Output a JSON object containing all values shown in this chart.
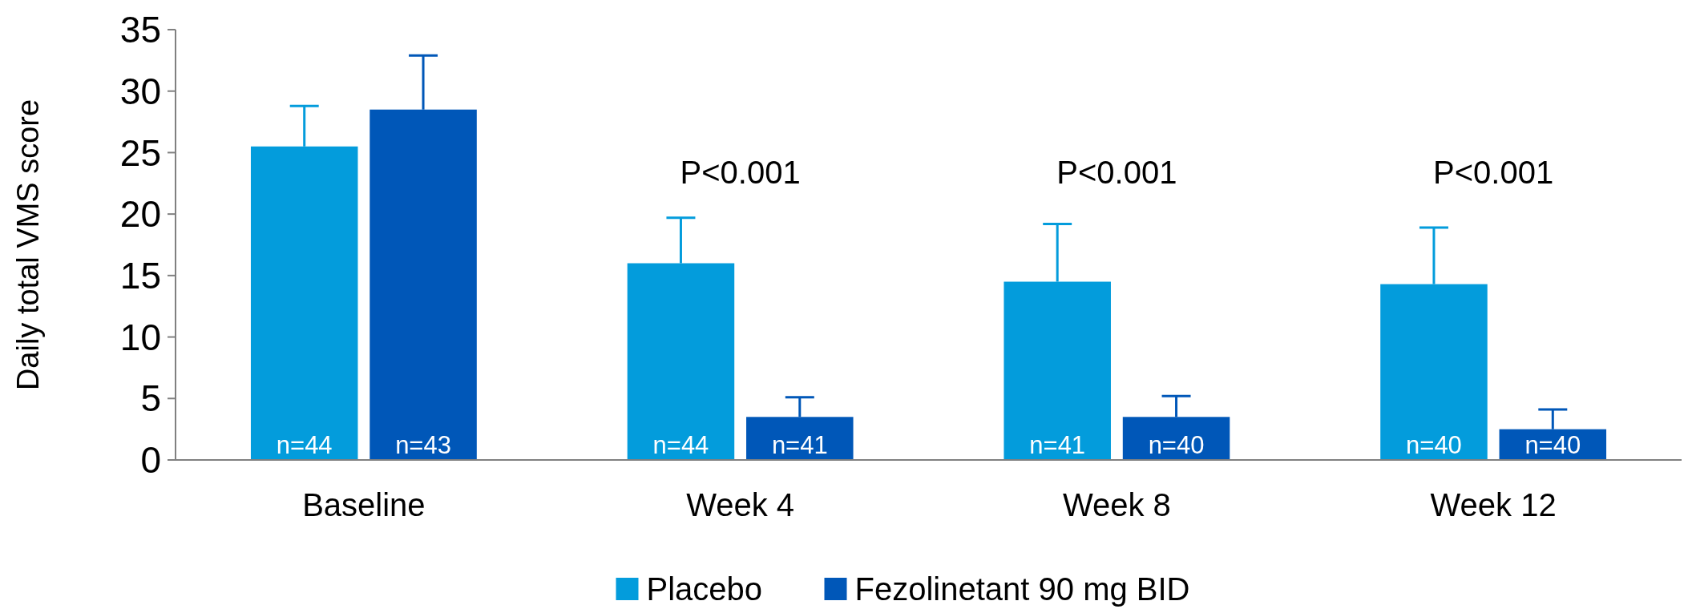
{
  "chart_data": {
    "type": "bar",
    "ylabel": "Daily total VMS score",
    "categories": [
      "Baseline",
      "Week 4",
      "Week 8",
      "Week 12"
    ],
    "series": [
      {
        "name": "Placebo",
        "color": "#039cdc",
        "values": [
          25.5,
          16,
          14.5,
          14.3
        ],
        "errors": [
          3.3,
          3.7,
          4.7,
          4.6
        ]
      },
      {
        "name": "Fezolinetant 90 mg BID",
        "color": "#0057b8",
        "values": [
          28.5,
          3.5,
          3.5,
          2.5
        ],
        "errors": [
          4.4,
          1.6,
          1.7,
          1.6
        ]
      }
    ],
    "ylim": [
      0,
      35
    ],
    "yticks": [
      0,
      5,
      10,
      15,
      20,
      25,
      30,
      35
    ],
    "grid": false,
    "legend": "bottom",
    "annotations": [
      "n=44",
      "n=44",
      "n=41",
      "n=40",
      "n=43",
      "n=41",
      "n=40",
      "n=40",
      "P<0.001",
      "P<0.001",
      "P<0.001"
    ]
  }
}
